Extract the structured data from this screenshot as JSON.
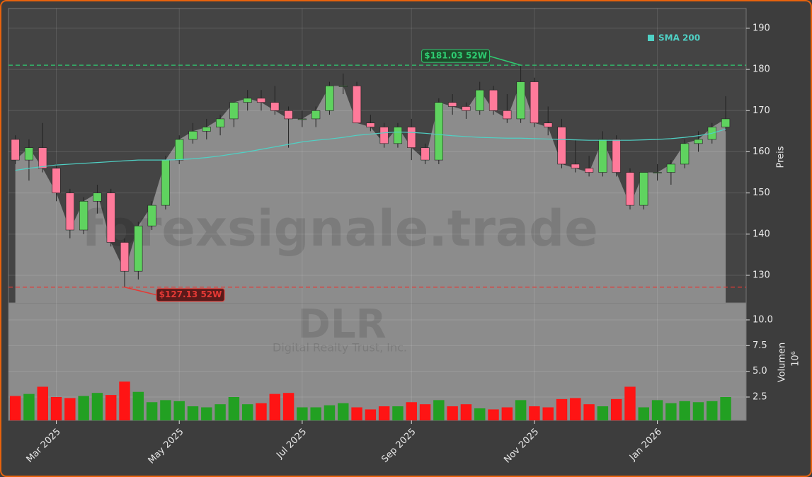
{
  "chart_data": [
    {
      "type": "candlestick",
      "categories": [
        null,
        null,
        null,
        "Mar 2025",
        null,
        null,
        null,
        null,
        null,
        null,
        null,
        null,
        "May 2025",
        null,
        null,
        null,
        null,
        null,
        null,
        null,
        null,
        "Jul 2025",
        null,
        null,
        null,
        null,
        null,
        null,
        null,
        "Sep 2025",
        null,
        null,
        null,
        null,
        null,
        null,
        null,
        null,
        "Nov 2025",
        null,
        null,
        null,
        null,
        null,
        null,
        null,
        null,
        "Jan 2026",
        null,
        null,
        null,
        null,
        null
      ],
      "open": [
        163,
        158,
        161,
        156,
        150,
        141,
        148,
        150,
        138,
        131,
        142,
        147,
        158,
        163,
        165,
        166,
        168,
        172,
        173,
        172,
        170,
        168,
        168,
        170,
        176,
        176,
        167,
        166,
        162,
        166,
        161,
        158,
        172,
        171,
        170,
        175,
        170,
        168,
        177,
        167,
        166,
        157,
        156,
        155,
        163,
        155,
        147,
        155,
        155,
        157,
        162,
        163,
        166
      ],
      "high": [
        164,
        163,
        167,
        157,
        151,
        149,
        152,
        151,
        139,
        143,
        148,
        159,
        164,
        167,
        168,
        169,
        172,
        175,
        175,
        176,
        171,
        170,
        171,
        177,
        179,
        177,
        169,
        167,
        167,
        168,
        162,
        173,
        174,
        172,
        177,
        176,
        174,
        181.03,
        178,
        171,
        168,
        163,
        159,
        165,
        164,
        156,
        155,
        157,
        158,
        163,
        165,
        167,
        173.5
      ],
      "low": [
        157,
        153,
        155,
        148,
        139,
        140,
        145,
        137,
        127.13,
        129,
        141,
        146,
        157,
        162,
        163,
        164,
        166,
        170,
        170,
        169,
        161,
        166,
        166,
        169,
        174,
        167,
        165,
        161,
        161,
        158,
        157,
        157,
        169,
        168,
        169,
        169,
        167,
        167,
        166,
        164,
        156,
        155,
        154,
        154,
        154,
        146,
        146,
        153,
        152,
        156,
        160,
        162,
        165
      ],
      "close": [
        158,
        161,
        156,
        150,
        141,
        148,
        150,
        138,
        131,
        142,
        147,
        158,
        163,
        165,
        166,
        168,
        172,
        173,
        172,
        170,
        168,
        168,
        170,
        176,
        176,
        167,
        166,
        162,
        166,
        161,
        158,
        172,
        171,
        170,
        175,
        170,
        168,
        177,
        167,
        166,
        157,
        156,
        155,
        163,
        155,
        147,
        155,
        155,
        157,
        162,
        163,
        166,
        168
      ],
      "up_color": "#5fd35f",
      "down_color": "#ff7a9a",
      "area_color": "#8c8c8c",
      "series": [
        {
          "name": "SMA 200",
          "color": "#4fd1c5",
          "values": [
            155.5,
            156,
            156.4,
            156.8,
            157,
            157.2,
            157.4,
            157.6,
            157.8,
            158,
            158,
            158,
            158.1,
            158.3,
            158.6,
            159,
            159.5,
            160,
            160.6,
            161.2,
            161.8,
            162.4,
            162.8,
            163.1,
            163.5,
            164,
            164.3,
            164.6,
            164.8,
            164.7,
            164.5,
            164.2,
            163.9,
            163.7,
            163.5,
            163.4,
            163.3,
            163.3,
            163.2,
            163.1,
            163,
            162.9,
            162.8,
            162.8,
            162.8,
            162.8,
            162.9,
            163,
            163.2,
            163.5,
            163.9,
            164.5,
            165.5
          ]
        }
      ],
      "ylim": [
        123.3,
        194.8
      ],
      "yticks": [
        130,
        140,
        150,
        160,
        170,
        180,
        190
      ],
      "ylabel": "Preis",
      "legend": "upper right",
      "grid": true,
      "annotations": [
        {
          "value": 181.03,
          "label": "$181.03 52W",
          "color": "#2ecc71"
        },
        {
          "value": 127.13,
          "label": "$127.13 52W",
          "color": "#e53935"
        }
      ],
      "watermark": "forexsignale.trade"
    },
    {
      "type": "bar",
      "values": [
        2.6,
        2.8,
        3.5,
        2.5,
        2.4,
        2.6,
        2.9,
        2.7,
        4.0,
        3.0,
        2.0,
        2.2,
        2.1,
        1.6,
        1.5,
        1.8,
        2.5,
        1.8,
        1.9,
        2.8,
        2.9,
        1.5,
        1.5,
        1.7,
        1.9,
        1.5,
        1.3,
        1.6,
        1.6,
        2.0,
        1.8,
        2.2,
        1.6,
        1.8,
        1.4,
        1.3,
        1.5,
        2.2,
        1.6,
        1.5,
        2.3,
        2.4,
        1.8,
        1.6,
        2.3,
        3.5,
        1.5,
        2.2,
        1.9,
        2.1,
        2.0,
        2.1,
        2.5
      ],
      "up_color": "#22a022",
      "down_color": "#ff1414",
      "ylim": [
        0.23,
        11.65
      ],
      "yticks": [
        {
          "value": 2.5,
          "label": "2.5"
        },
        {
          "value": 5,
          "label": "5.0"
        },
        7.5,
        {
          "value": 10,
          "label": "10.0"
        }
      ],
      "ylabel": "Volumen",
      "ylabel_multiplier": "10⁶",
      "watermark_symbol": "DLR",
      "watermark_name": "Digital Realty Trust, Inc."
    }
  ]
}
